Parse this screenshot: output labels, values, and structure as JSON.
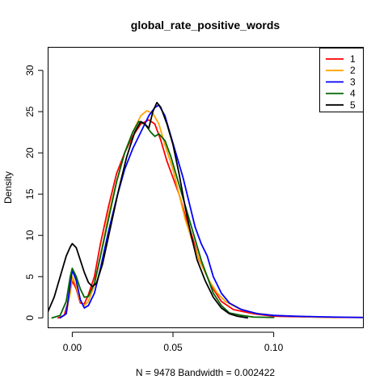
{
  "chart_data": {
    "type": "line",
    "title": "global_rate_positive_words",
    "xlabel": "N = 9478   Bandwidth = 0.002422",
    "ylabel": "Density",
    "xlim": [
      -0.012,
      0.1445
    ],
    "ylim": [
      -1.2,
      32.8
    ],
    "x_ticks": [
      0.0,
      0.05,
      0.1
    ],
    "x_tick_labels": [
      "0.00",
      "0.05",
      "0.10"
    ],
    "y_ticks": [
      0,
      5,
      10,
      15,
      20,
      25,
      30
    ],
    "y_tick_labels": [
      "0",
      "5",
      "10",
      "15",
      "20",
      "25",
      "30"
    ],
    "grid": false,
    "legend_position": "top-right",
    "series": [
      {
        "name": "1",
        "color": "#ff0000",
        "points": [
          [
            -0.007,
            0.0
          ],
          [
            -0.004,
            0.3
          ],
          [
            -0.002,
            2.0
          ],
          [
            0.0,
            4.5
          ],
          [
            0.002,
            3.5
          ],
          [
            0.004,
            1.8
          ],
          [
            0.006,
            1.7
          ],
          [
            0.008,
            2.8
          ],
          [
            0.011,
            5.0
          ],
          [
            0.014,
            9.0
          ],
          [
            0.018,
            13.5
          ],
          [
            0.022,
            17.5
          ],
          [
            0.026,
            20.0
          ],
          [
            0.03,
            22.0
          ],
          [
            0.034,
            23.5
          ],
          [
            0.038,
            24.0
          ],
          [
            0.041,
            23.5
          ],
          [
            0.044,
            21.5
          ],
          [
            0.047,
            19.0
          ],
          [
            0.05,
            17.0
          ],
          [
            0.053,
            15.0
          ],
          [
            0.056,
            12.5
          ],
          [
            0.06,
            9.5
          ],
          [
            0.063,
            7.0
          ],
          [
            0.066,
            5.5
          ],
          [
            0.07,
            3.5
          ],
          [
            0.074,
            2.0
          ],
          [
            0.08,
            1.0
          ],
          [
            0.09,
            0.5
          ],
          [
            0.1,
            0.2
          ],
          [
            0.11,
            0.15
          ],
          [
            0.12,
            0.1
          ],
          [
            0.13,
            0.05
          ],
          [
            0.144,
            0.05
          ]
        ]
      },
      {
        "name": "2",
        "color": "#ffa500",
        "points": [
          [
            -0.006,
            0.0
          ],
          [
            -0.003,
            0.5
          ],
          [
            -0.001,
            3.0
          ],
          [
            0.0,
            5.0
          ],
          [
            0.002,
            3.8
          ],
          [
            0.004,
            2.0
          ],
          [
            0.006,
            1.5
          ],
          [
            0.008,
            2.0
          ],
          [
            0.011,
            4.0
          ],
          [
            0.014,
            7.5
          ],
          [
            0.018,
            12.5
          ],
          [
            0.022,
            16.5
          ],
          [
            0.026,
            20.0
          ],
          [
            0.03,
            22.5
          ],
          [
            0.034,
            24.5
          ],
          [
            0.037,
            25.1
          ],
          [
            0.04,
            24.8
          ],
          [
            0.043,
            23.5
          ],
          [
            0.046,
            21.0
          ],
          [
            0.05,
            18.0
          ],
          [
            0.053,
            15.0
          ],
          [
            0.056,
            12.0
          ],
          [
            0.06,
            9.0
          ],
          [
            0.064,
            6.5
          ],
          [
            0.068,
            4.5
          ],
          [
            0.072,
            3.0
          ],
          [
            0.076,
            2.0
          ],
          [
            0.082,
            1.2
          ],
          [
            0.09,
            0.6
          ],
          [
            0.1,
            0.3
          ],
          [
            0.11,
            0.2
          ],
          [
            0.12,
            0.1
          ],
          [
            0.144,
            0.05
          ]
        ]
      },
      {
        "name": "3",
        "color": "#0000ff",
        "points": [
          [
            -0.006,
            0.0
          ],
          [
            -0.003,
            0.5
          ],
          [
            -0.001,
            4.0
          ],
          [
            0.0,
            5.8
          ],
          [
            0.002,
            4.5
          ],
          [
            0.004,
            2.2
          ],
          [
            0.006,
            1.2
          ],
          [
            0.008,
            1.5
          ],
          [
            0.011,
            3.0
          ],
          [
            0.014,
            6.0
          ],
          [
            0.018,
            10.5
          ],
          [
            0.022,
            14.5
          ],
          [
            0.026,
            18.0
          ],
          [
            0.03,
            20.5
          ],
          [
            0.034,
            22.5
          ],
          [
            0.038,
            24.5
          ],
          [
            0.041,
            25.5
          ],
          [
            0.043,
            25.8
          ],
          [
            0.046,
            24.5
          ],
          [
            0.049,
            22.0
          ],
          [
            0.052,
            19.5
          ],
          [
            0.055,
            17.0
          ],
          [
            0.058,
            14.0
          ],
          [
            0.061,
            11.0
          ],
          [
            0.064,
            9.0
          ],
          [
            0.067,
            7.5
          ],
          [
            0.07,
            5.0
          ],
          [
            0.074,
            3.0
          ],
          [
            0.078,
            1.8
          ],
          [
            0.084,
            1.0
          ],
          [
            0.092,
            0.5
          ],
          [
            0.1,
            0.3
          ],
          [
            0.11,
            0.2
          ],
          [
            0.12,
            0.15
          ],
          [
            0.13,
            0.1
          ],
          [
            0.144,
            0.05
          ]
        ]
      },
      {
        "name": "4",
        "color": "#006400",
        "points": [
          [
            -0.01,
            0.0
          ],
          [
            -0.006,
            0.3
          ],
          [
            -0.003,
            2.0
          ],
          [
            -0.001,
            5.0
          ],
          [
            0.0,
            6.0
          ],
          [
            0.002,
            5.0
          ],
          [
            0.004,
            3.5
          ],
          [
            0.006,
            2.5
          ],
          [
            0.008,
            2.6
          ],
          [
            0.011,
            4.2
          ],
          [
            0.014,
            7.5
          ],
          [
            0.018,
            12.0
          ],
          [
            0.022,
            16.5
          ],
          [
            0.026,
            20.0
          ],
          [
            0.03,
            22.5
          ],
          [
            0.033,
            23.8
          ],
          [
            0.036,
            23.5
          ],
          [
            0.039,
            22.5
          ],
          [
            0.041,
            22.0
          ],
          [
            0.043,
            22.3
          ],
          [
            0.046,
            21.5
          ],
          [
            0.049,
            19.5
          ],
          [
            0.052,
            17.0
          ],
          [
            0.055,
            14.5
          ],
          [
            0.058,
            12.0
          ],
          [
            0.061,
            9.5
          ],
          [
            0.064,
            7.0
          ],
          [
            0.067,
            5.0
          ],
          [
            0.07,
            3.0
          ],
          [
            0.074,
            1.5
          ],
          [
            0.078,
            0.6
          ],
          [
            0.084,
            0.3
          ],
          [
            0.09,
            0.1
          ],
          [
            0.1,
            0.05
          ]
        ]
      },
      {
        "name": "5",
        "color": "#000000",
        "points": [
          [
            -0.012,
            0.8
          ],
          [
            -0.009,
            2.5
          ],
          [
            -0.006,
            5.0
          ],
          [
            -0.003,
            7.5
          ],
          [
            -0.001,
            8.6
          ],
          [
            0.0,
            9.0
          ],
          [
            0.002,
            8.5
          ],
          [
            0.004,
            7.0
          ],
          [
            0.006,
            5.5
          ],
          [
            0.008,
            4.3
          ],
          [
            0.01,
            3.8
          ],
          [
            0.012,
            4.2
          ],
          [
            0.015,
            6.5
          ],
          [
            0.019,
            11.0
          ],
          [
            0.023,
            15.5
          ],
          [
            0.027,
            19.5
          ],
          [
            0.031,
            22.5
          ],
          [
            0.034,
            23.8
          ],
          [
            0.036,
            23.5
          ],
          [
            0.038,
            23.0
          ],
          [
            0.04,
            25.0
          ],
          [
            0.042,
            26.1
          ],
          [
            0.044,
            25.5
          ],
          [
            0.047,
            23.5
          ],
          [
            0.05,
            21.0
          ],
          [
            0.053,
            17.5
          ],
          [
            0.056,
            13.5
          ],
          [
            0.059,
            10.0
          ],
          [
            0.062,
            7.0
          ],
          [
            0.066,
            4.5
          ],
          [
            0.07,
            2.5
          ],
          [
            0.074,
            1.2
          ],
          [
            0.078,
            0.5
          ],
          [
            0.082,
            0.2
          ],
          [
            0.087,
            0.0
          ]
        ]
      }
    ]
  }
}
